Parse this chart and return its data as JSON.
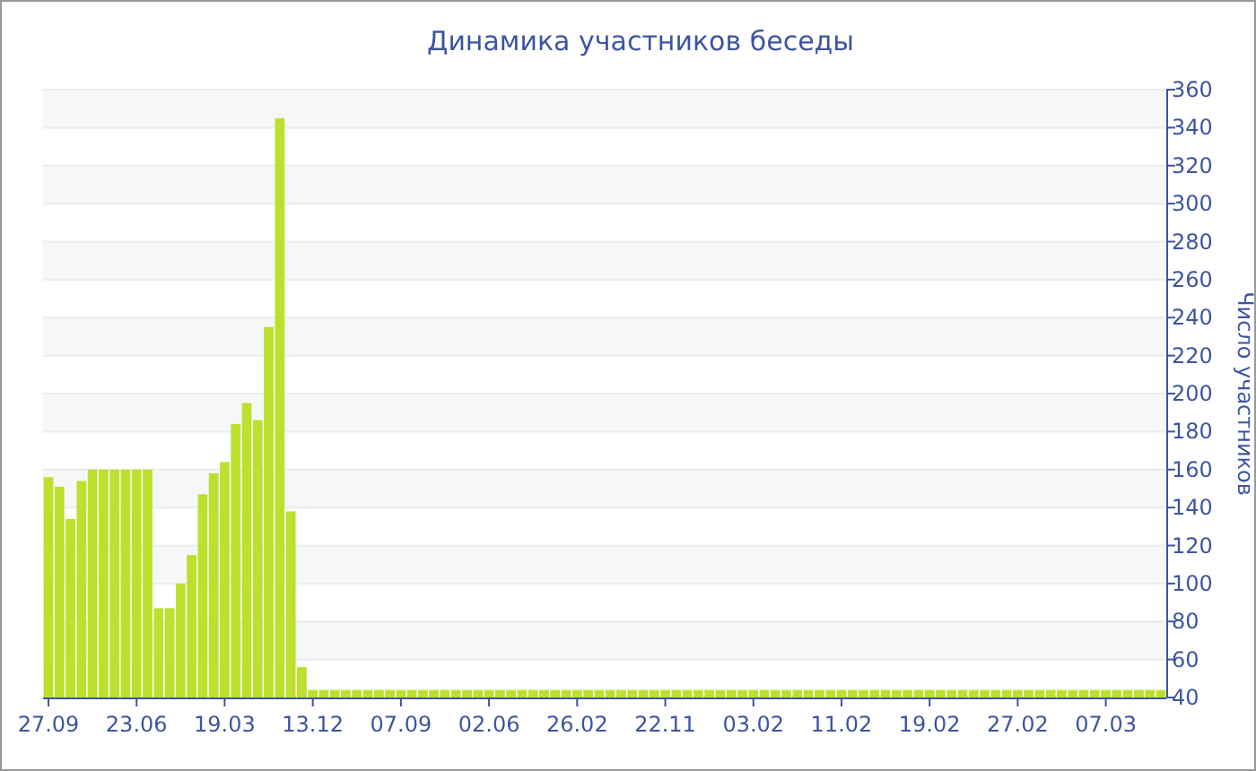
{
  "chart_data": {
    "type": "bar",
    "title": "Динамика участников беседы",
    "ylabel": "Число участников",
    "categories": [
      "27.09",
      null,
      null,
      null,
      null,
      null,
      null,
      null,
      "23.06",
      null,
      null,
      null,
      null,
      null,
      null,
      null,
      "19.03",
      null,
      null,
      null,
      null,
      null,
      null,
      null,
      "13.12",
      null,
      null,
      null,
      null,
      null,
      null,
      null,
      "07.09",
      null,
      null,
      null,
      null,
      null,
      null,
      null,
      "02.06",
      null,
      null,
      null,
      null,
      null,
      null,
      null,
      "26.02",
      null,
      null,
      null,
      null,
      null,
      null,
      null,
      "22.11",
      null,
      null,
      null,
      null,
      null,
      null,
      null,
      "03.02",
      null,
      null,
      null,
      null,
      null,
      null,
      null,
      "11.02",
      null,
      null,
      null,
      null,
      null,
      null,
      null,
      "19.02",
      null,
      null,
      null,
      null,
      null,
      null,
      null,
      "27.02",
      null,
      null,
      null,
      null,
      null,
      null,
      null,
      "07.03",
      null,
      null,
      null,
      null,
      null
    ],
    "values": [
      156,
      151,
      134,
      154,
      160,
      160,
      160,
      160,
      160,
      160,
      87,
      87,
      100,
      115,
      147,
      158,
      164,
      184,
      195,
      186,
      235,
      345,
      138,
      56,
      44,
      44,
      44,
      44,
      44,
      44,
      44,
      44,
      44,
      44,
      44,
      44,
      44,
      44,
      44,
      44,
      44,
      44,
      44,
      44,
      44,
      44,
      44,
      44,
      44,
      44,
      44,
      44,
      44,
      44,
      44,
      44,
      44,
      44,
      44,
      44,
      44,
      44,
      44,
      44,
      44,
      44,
      44,
      44,
      44,
      44,
      44,
      44,
      44,
      44,
      44,
      44,
      44,
      44,
      44,
      44,
      44,
      44,
      44,
      44,
      44,
      44,
      44,
      44,
      44,
      44,
      44,
      44,
      44,
      44,
      44,
      44,
      44,
      44,
      44,
      44,
      44,
      44
    ],
    "color": "#bde02e",
    "ylim": [
      40,
      360
    ],
    "yticks": [
      40,
      60,
      80,
      100,
      120,
      140,
      160,
      180,
      200,
      220,
      240,
      260,
      280,
      300,
      320,
      340,
      360
    ],
    "grid": "y"
  }
}
